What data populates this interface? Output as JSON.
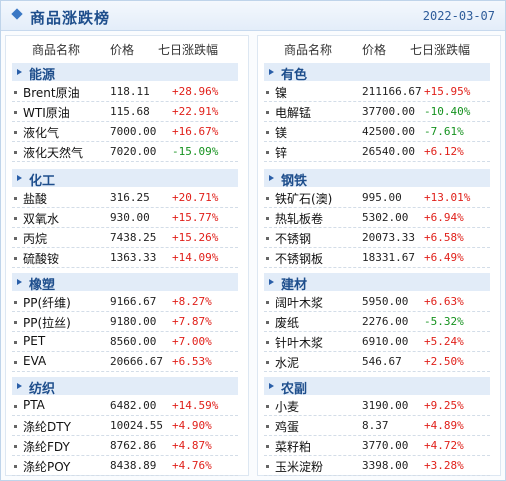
{
  "title": "商品涨跌榜",
  "date": "2022-03-07",
  "colors": {
    "up": "#e0201a",
    "down": "#15921f",
    "accent": "#1e4e8c"
  },
  "columns": {
    "name": "商品名称",
    "price": "价格",
    "change": "七日涨跌幅"
  },
  "left": [
    {
      "category": "能源",
      "items": [
        {
          "name": "Brent原油",
          "price": "118.11",
          "change": "+28.96%",
          "dir": "up"
        },
        {
          "name": "WTI原油",
          "price": "115.68",
          "change": "+22.91%",
          "dir": "up"
        },
        {
          "name": "液化气",
          "price": "7000.00",
          "change": "+16.67%",
          "dir": "up"
        },
        {
          "name": "液化天然气",
          "price": "7020.00",
          "change": "-15.09%",
          "dir": "down"
        }
      ]
    },
    {
      "category": "化工",
      "items": [
        {
          "name": "盐酸",
          "price": "316.25",
          "change": "+20.71%",
          "dir": "up"
        },
        {
          "name": "双氧水",
          "price": "930.00",
          "change": "+15.77%",
          "dir": "up"
        },
        {
          "name": "丙烷",
          "price": "7438.25",
          "change": "+15.26%",
          "dir": "up"
        },
        {
          "name": "硫酸铵",
          "price": "1363.33",
          "change": "+14.09%",
          "dir": "up"
        }
      ]
    },
    {
      "category": "橡塑",
      "items": [
        {
          "name": "PP(纤维)",
          "price": "9166.67",
          "change": "+8.27%",
          "dir": "up"
        },
        {
          "name": "PP(拉丝)",
          "price": "9180.00",
          "change": "+7.87%",
          "dir": "up"
        },
        {
          "name": "PET",
          "price": "8560.00",
          "change": "+7.00%",
          "dir": "up"
        },
        {
          "name": "EVA",
          "price": "20666.67",
          "change": "+6.53%",
          "dir": "up"
        }
      ]
    },
    {
      "category": "纺织",
      "items": [
        {
          "name": "PTA",
          "price": "6482.00",
          "change": "+14.59%",
          "dir": "up"
        },
        {
          "name": "涤纶DTY",
          "price": "10024.55",
          "change": "+4.90%",
          "dir": "up"
        },
        {
          "name": "涤纶FDY",
          "price": "8762.86",
          "change": "+4.87%",
          "dir": "up"
        },
        {
          "name": "涤纶POY",
          "price": "8438.89",
          "change": "+4.76%",
          "dir": "up"
        }
      ]
    }
  ],
  "right": [
    {
      "category": "有色",
      "items": [
        {
          "name": "镍",
          "price": "211166.67",
          "change": "+15.95%",
          "dir": "up"
        },
        {
          "name": "电解锰",
          "price": "37700.00",
          "change": "-10.40%",
          "dir": "down"
        },
        {
          "name": "镁",
          "price": "42500.00",
          "change": "-7.61%",
          "dir": "down"
        },
        {
          "name": "锌",
          "price": "26540.00",
          "change": "+6.12%",
          "dir": "up"
        }
      ]
    },
    {
      "category": "钢铁",
      "items": [
        {
          "name": "铁矿石(澳)",
          "price": "995.00",
          "change": "+13.01%",
          "dir": "up"
        },
        {
          "name": "热轧板卷",
          "price": "5302.00",
          "change": "+6.94%",
          "dir": "up"
        },
        {
          "name": "不锈钢",
          "price": "20073.33",
          "change": "+6.58%",
          "dir": "up"
        },
        {
          "name": "不锈钢板",
          "price": "18331.67",
          "change": "+6.49%",
          "dir": "up"
        }
      ]
    },
    {
      "category": "建材",
      "items": [
        {
          "name": "阔叶木浆",
          "price": "5950.00",
          "change": "+6.63%",
          "dir": "up"
        },
        {
          "name": "废纸",
          "price": "2276.00",
          "change": "-5.32%",
          "dir": "down"
        },
        {
          "name": "针叶木浆",
          "price": "6910.00",
          "change": "+5.24%",
          "dir": "up"
        },
        {
          "name": "水泥",
          "price": "546.67",
          "change": "+2.50%",
          "dir": "up"
        }
      ]
    },
    {
      "category": "农副",
      "items": [
        {
          "name": "小麦",
          "price": "3190.00",
          "change": "+9.25%",
          "dir": "up"
        },
        {
          "name": "鸡蛋",
          "price": "8.37",
          "change": "+4.89%",
          "dir": "up"
        },
        {
          "name": "菜籽粕",
          "price": "3770.00",
          "change": "+4.72%",
          "dir": "up"
        },
        {
          "name": "玉米淀粉",
          "price": "3398.00",
          "change": "+3.28%",
          "dir": "up"
        }
      ]
    }
  ]
}
